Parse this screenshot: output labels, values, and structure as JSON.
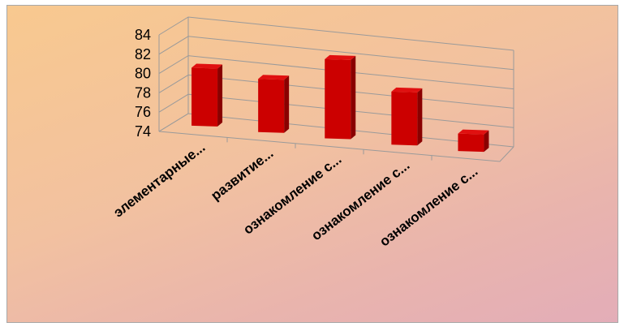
{
  "chart_data": {
    "type": "bar",
    "style": "3d-column",
    "categories": [
      "элементарные...",
      "развитие...",
      "ознакомление с...",
      "ознакомление с...",
      "ознакомление с..."
    ],
    "values": [
      80,
      79.5,
      82.2,
      79.5,
      75.8
    ],
    "ylim": [
      74,
      84
    ],
    "yticks": [
      "74",
      "76",
      "78",
      "80",
      "82",
      "84"
    ],
    "grid": true,
    "legend": "none",
    "bar_color": "#cc0000"
  }
}
